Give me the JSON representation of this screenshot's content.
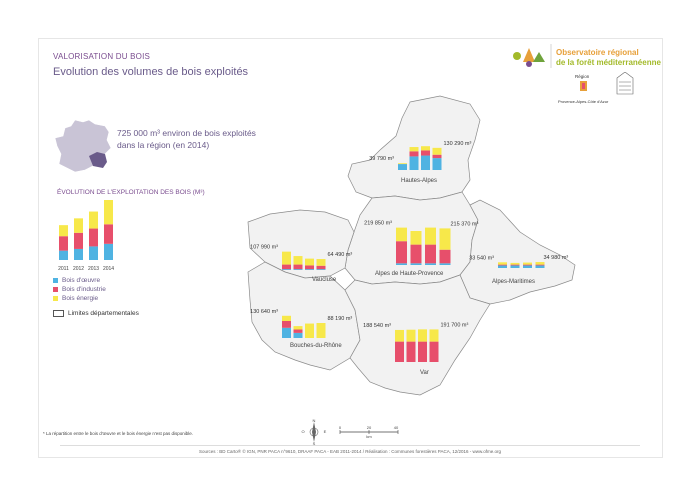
{
  "header": {
    "kicker": "VALORISATION DU BOIS",
    "title": "Evolution des volumes de bois exploités"
  },
  "logo": {
    "line1": "Observatoire régional",
    "line2": "de la forêt méditerranéenne"
  },
  "partners": {
    "region": "Région",
    "region_name": "Provence-Alpes-Côte d'Azur"
  },
  "summary": {
    "text": "725 000 m³ environ de bois exploités dans la région (en 2014)"
  },
  "evolution_title": "ÉVOLUTION DE L'EXPLOITATION DES BOIS (M³)",
  "legend": {
    "items": [
      {
        "label": "Bois d'œuvre",
        "color": "#4fb3e2"
      },
      {
        "label": "Bois d'industrie",
        "color": "#e74f6b"
      },
      {
        "label": "Bois énergie",
        "color": "#f7e84a"
      }
    ],
    "limits_label": "Limites départementales"
  },
  "colors": {
    "oeuvre": "#4fb3e2",
    "industrie": "#e74f6b",
    "energie": "#f7e84a",
    "map_fill": "#f2f2f2",
    "map_stroke": "#8a8a8a",
    "title": "#6a5b8a"
  },
  "chart_data": {
    "type": "bar",
    "stacked": true,
    "categories": [
      "2011",
      "2012",
      "2013",
      "2014"
    ],
    "region_total_2014": 725000,
    "regional_example": {
      "oeuvre": [
        110000,
        130000,
        160000,
        190000
      ],
      "industrie": [
        170000,
        190000,
        210000,
        230000
      ],
      "energie": [
        130000,
        170000,
        200000,
        300000
      ]
    },
    "departments": [
      {
        "name": "Hautes-Alpes",
        "first_label": "39 790 m³",
        "last_label": "130 290 m³",
        "oeuvre": [
          35000,
          80000,
          85000,
          70000
        ],
        "industrie": [
          0,
          30000,
          30000,
          20000
        ],
        "energie": [
          4790,
          25000,
          25000,
          40290
        ]
      },
      {
        "name": "Alpes de Haute-Provence",
        "first_label": "219 850 m³",
        "last_label": "215 370 m³",
        "oeuvre": [
          10000,
          10000,
          10000,
          10000
        ],
        "industrie": [
          130000,
          110000,
          110000,
          80000
        ],
        "energie": [
          79850,
          80000,
          100000,
          125370
        ]
      },
      {
        "name": "Alpes-Maritimes",
        "first_label": "33 540 m³",
        "last_label": "34 980 m³",
        "oeuvre": [
          15000,
          15000,
          15000,
          15000
        ],
        "industrie": [
          5000,
          5000,
          5000,
          5000
        ],
        "energie": [
          13540,
          10000,
          12000,
          14980
        ]
      },
      {
        "name": "Vaucluse",
        "first_label": "107 990 m³",
        "last_label": "64 490 m³",
        "oeuvre": [
          5000,
          5000,
          5000,
          5000
        ],
        "industrie": [
          27000,
          27000,
          22000,
          20000
        ],
        "energie": [
          75990,
          50000,
          40000,
          39490
        ]
      },
      {
        "name": "Bouches-du-Rhône",
        "first_label": "130 640 m³",
        "last_label": "88 190 m³",
        "oeuvre": [
          60000,
          30000,
          0,
          0
        ],
        "industrie": [
          40000,
          20000,
          0,
          0
        ],
        "energie": [
          30640,
          20000,
          85000,
          88190
        ]
      },
      {
        "name": "Var",
        "first_label": "188 540 m³",
        "last_label": "191 700 m³",
        "oeuvre": [
          0,
          0,
          0,
          0
        ],
        "industrie": [
          120000,
          120000,
          120000,
          120000
        ],
        "energie": [
          68540,
          70000,
          72000,
          71700
        ]
      }
    ]
  },
  "scale": {
    "ticks": [
      "0",
      "20",
      "40"
    ],
    "unit": "km",
    "compass": [
      "N",
      "O",
      "E",
      "S"
    ]
  },
  "footnote": "* La répartition entre le bois d'œuvre et le bois énergie n'est pas disponible.",
  "sources": "Sources : BD Carto® © IGN, PNR PACA n°9610, DRAAF PACA - EAB 2011-2014 / Réalisation : Communes forestières PACA, 12/2016 - www.ofme.org"
}
